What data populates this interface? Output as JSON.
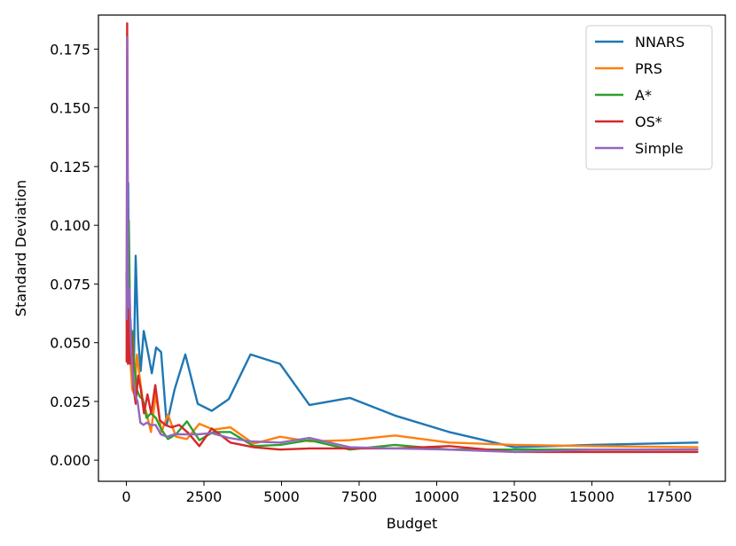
{
  "chart_data": {
    "type": "line",
    "title": "",
    "xlabel": "Budget",
    "ylabel": "Standard Deviation",
    "xlim": [
      -900,
      19300
    ],
    "ylim": [
      -0.009,
      0.1895
    ],
    "xticks": [
      0,
      2500,
      5000,
      7500,
      10000,
      12500,
      15000,
      17500
    ],
    "yticks": [
      0.0,
      0.025,
      0.05,
      0.075,
      0.1,
      0.125,
      0.15,
      0.175
    ],
    "xtick_labels": [
      "0",
      "2500",
      "5000",
      "7500",
      "10000",
      "12500",
      "15000",
      "17500"
    ],
    "ytick_labels": [
      "0.000",
      "0.025",
      "0.050",
      "0.075",
      "0.100",
      "0.125",
      "0.150",
      "0.175"
    ],
    "grid": false,
    "legend_position": "top-right",
    "series": [
      {
        "name": "NNARS",
        "color": "#1f77b4",
        "x": [
          10,
          30,
          60,
          90,
          130,
          180,
          240,
          300,
          380,
          460,
          560,
          680,
          820,
          960,
          1120,
          1300,
          1550,
          1900,
          2300,
          2750,
          3300,
          4000,
          4950,
          5900,
          7200,
          8650,
          10400,
          12500,
          15000,
          18400
        ],
        "y": [
          0.065,
          0.045,
          0.118,
          0.042,
          0.06,
          0.045,
          0.038,
          0.087,
          0.052,
          0.038,
          0.055,
          0.047,
          0.037,
          0.048,
          0.046,
          0.015,
          0.03,
          0.045,
          0.024,
          0.021,
          0.026,
          0.045,
          0.041,
          0.0235,
          0.0265,
          0.019,
          0.012,
          0.0055,
          0.0065,
          0.0075
        ]
      },
      {
        "name": "PRS",
        "color": "#ff7f0e",
        "x": [
          10,
          40,
          80,
          130,
          190,
          260,
          340,
          430,
          530,
          650,
          790,
          950,
          1130,
          1340,
          1600,
          1950,
          2350,
          2800,
          3350,
          4100,
          4950,
          5900,
          7200,
          8650,
          10400,
          12500,
          15000,
          18400
        ],
        "y": [
          0.08,
          0.043,
          0.06,
          0.042,
          0.03,
          0.028,
          0.045,
          0.035,
          0.025,
          0.02,
          0.012,
          0.028,
          0.012,
          0.0195,
          0.01,
          0.009,
          0.0155,
          0.013,
          0.014,
          0.007,
          0.01,
          0.008,
          0.0085,
          0.0105,
          0.0075,
          0.0065,
          0.006,
          0.0055
        ]
      },
      {
        "name": "A*",
        "color": "#2ca02c",
        "x": [
          10,
          40,
          80,
          130,
          190,
          260,
          340,
          430,
          530,
          650,
          790,
          950,
          1130,
          1340,
          1600,
          1950,
          2350,
          2800,
          3350,
          4100,
          4950,
          5900,
          7200,
          8650,
          10400,
          12500,
          15000,
          18400
        ],
        "y": [
          0.08,
          0.055,
          0.102,
          0.045,
          0.055,
          0.04,
          0.03,
          0.027,
          0.026,
          0.018,
          0.02,
          0.018,
          0.013,
          0.009,
          0.011,
          0.0165,
          0.0085,
          0.012,
          0.012,
          0.006,
          0.0065,
          0.0085,
          0.0045,
          0.0065,
          0.0045,
          0.0045,
          0.0045,
          0.0045
        ]
      },
      {
        "name": "OS*",
        "color": "#d62728",
        "x": [
          10,
          25,
          50,
          80,
          120,
          170,
          230,
          300,
          380,
          470,
          570,
          680,
          800,
          930,
          1080,
          1250,
          1450,
          1700,
          2000,
          2350,
          2750,
          3350,
          4100,
          4950,
          5900,
          7200,
          8650,
          10400,
          12500,
          15000,
          18400
        ],
        "y": [
          0.042,
          0.186,
          0.041,
          0.064,
          0.041,
          0.054,
          0.031,
          0.024,
          0.036,
          0.03,
          0.02,
          0.028,
          0.02,
          0.032,
          0.017,
          0.015,
          0.014,
          0.015,
          0.0115,
          0.006,
          0.0135,
          0.0075,
          0.0055,
          0.0045,
          0.005,
          0.005,
          0.005,
          0.006,
          0.0035,
          0.0035,
          0.0035
        ]
      },
      {
        "name": "Simple",
        "color": "#9467bd",
        "x": [
          10,
          30,
          60,
          100,
          150,
          210,
          280,
          360,
          450,
          550,
          660,
          790,
          940,
          1110,
          1300,
          1550,
          1900,
          2300,
          2750,
          3300,
          4000,
          4950,
          5900,
          7200,
          8650,
          10400,
          12500,
          15000,
          18400
        ],
        "y": [
          0.06,
          0.18,
          0.065,
          0.073,
          0.048,
          0.036,
          0.028,
          0.025,
          0.016,
          0.015,
          0.016,
          0.015,
          0.015,
          0.011,
          0.01,
          0.011,
          0.011,
          0.011,
          0.0115,
          0.0095,
          0.008,
          0.0075,
          0.0095,
          0.0055,
          0.005,
          0.0045,
          0.0035,
          0.0045,
          0.0045
        ]
      }
    ]
  }
}
